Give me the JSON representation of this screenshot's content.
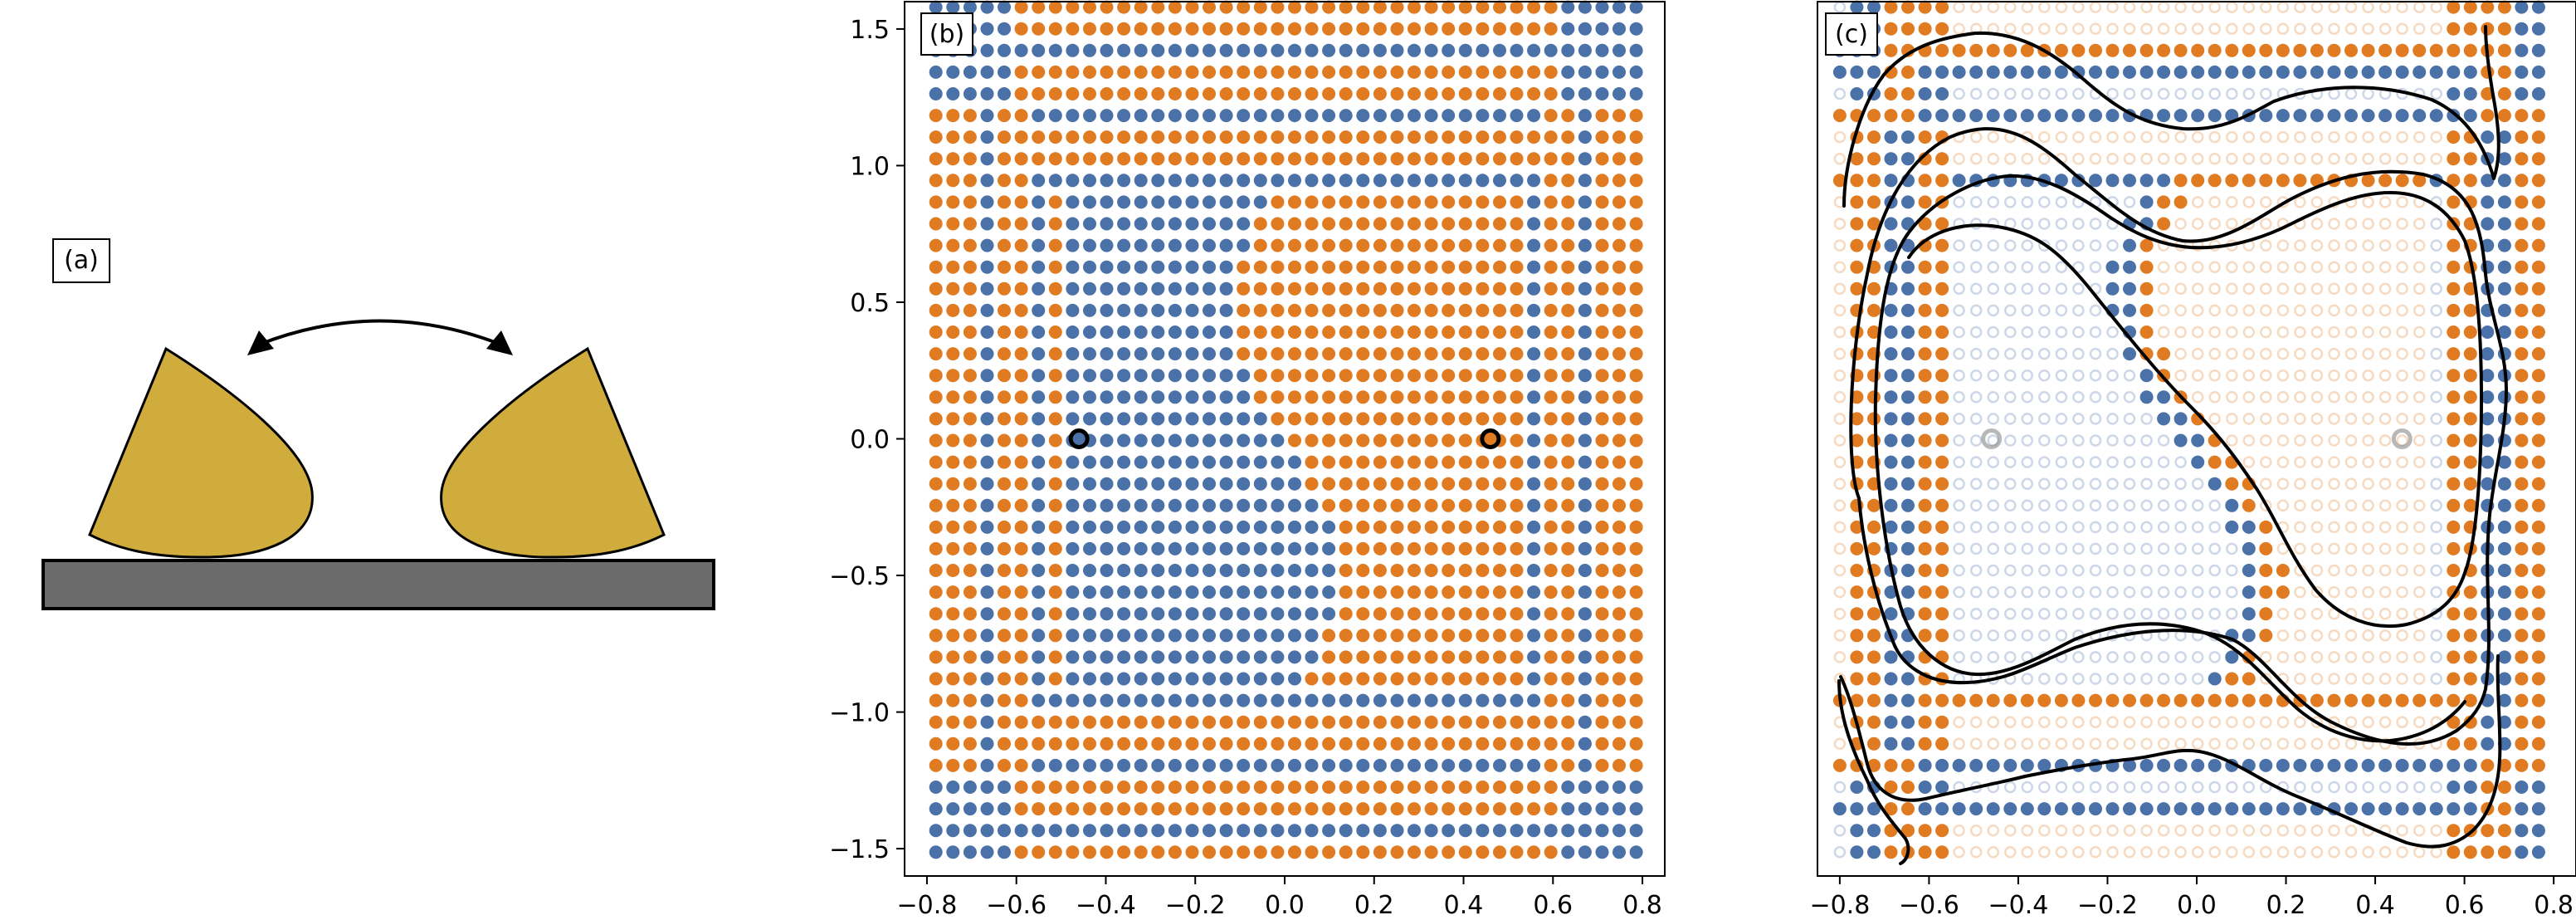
{
  "panels": [
    {
      "label": "(a)"
    },
    {
      "label": "(b)"
    },
    {
      "label": "(c)"
    }
  ],
  "colors": {
    "blue": "#4a71a8",
    "orange": "#e07b22",
    "gold": "#cfac3c",
    "substrate": "#6b6b6b"
  },
  "chart_data": [
    {
      "panel": "(b)",
      "type": "scatter",
      "description_of_grid": "dense lattice of points colored by class",
      "xlim": [
        -0.85,
        0.85
      ],
      "ylim": [
        -1.6,
        1.6
      ],
      "xticks": [
        -0.8,
        -0.6,
        -0.4,
        -0.2,
        0.0,
        0.2,
        0.4,
        0.6,
        0.8
      ],
      "yticks": [
        1.5,
        1.0,
        0.5,
        0.0,
        -0.5,
        -1.0,
        -1.5
      ],
      "xtick_labels": [
        "−0.8",
        "−0.6",
        "−0.4",
        "−0.2",
        "0.0",
        "0.2",
        "0.4",
        "0.6",
        "0.8"
      ],
      "ytick_labels": [
        "1.5",
        "1.0",
        "0.5",
        "0.0",
        "−0.5",
        "−1.0",
        "−1.5"
      ],
      "grid_x": {
        "start": -0.78,
        "step": 0.0382,
        "count": 42
      },
      "grid_y": {
        "start": 1.58,
        "step": -0.0793,
        "count": 40
      },
      "highlighted_points": [
        {
          "x": -0.46,
          "y": 0.0
        },
        {
          "x": 0.46,
          "y": 0.0
        }
      ]
    },
    {
      "panel": "(c)",
      "type": "scatter",
      "xlim": [
        -0.85,
        0.85
      ],
      "ylim": [
        -1.6,
        1.6
      ],
      "xticks": [
        -0.8,
        -0.6,
        -0.4,
        -0.2,
        0.0,
        0.2,
        0.4,
        0.6,
        0.8
      ],
      "xtick_labels": [
        "−0.8",
        "−0.6",
        "−0.4",
        "−0.2",
        "0.0",
        "0.2",
        "0.4",
        "0.6",
        "0.8"
      ],
      "grid_x": {
        "start": -0.8,
        "step": 0.0382,
        "count": 42
      },
      "grid_y": {
        "start": 1.58,
        "step": -0.0793,
        "count": 40
      },
      "highlighted_points": [
        {
          "x": -0.46,
          "y": 0.0
        },
        {
          "x": 0.46,
          "y": 0.0
        }
      ]
    }
  ]
}
